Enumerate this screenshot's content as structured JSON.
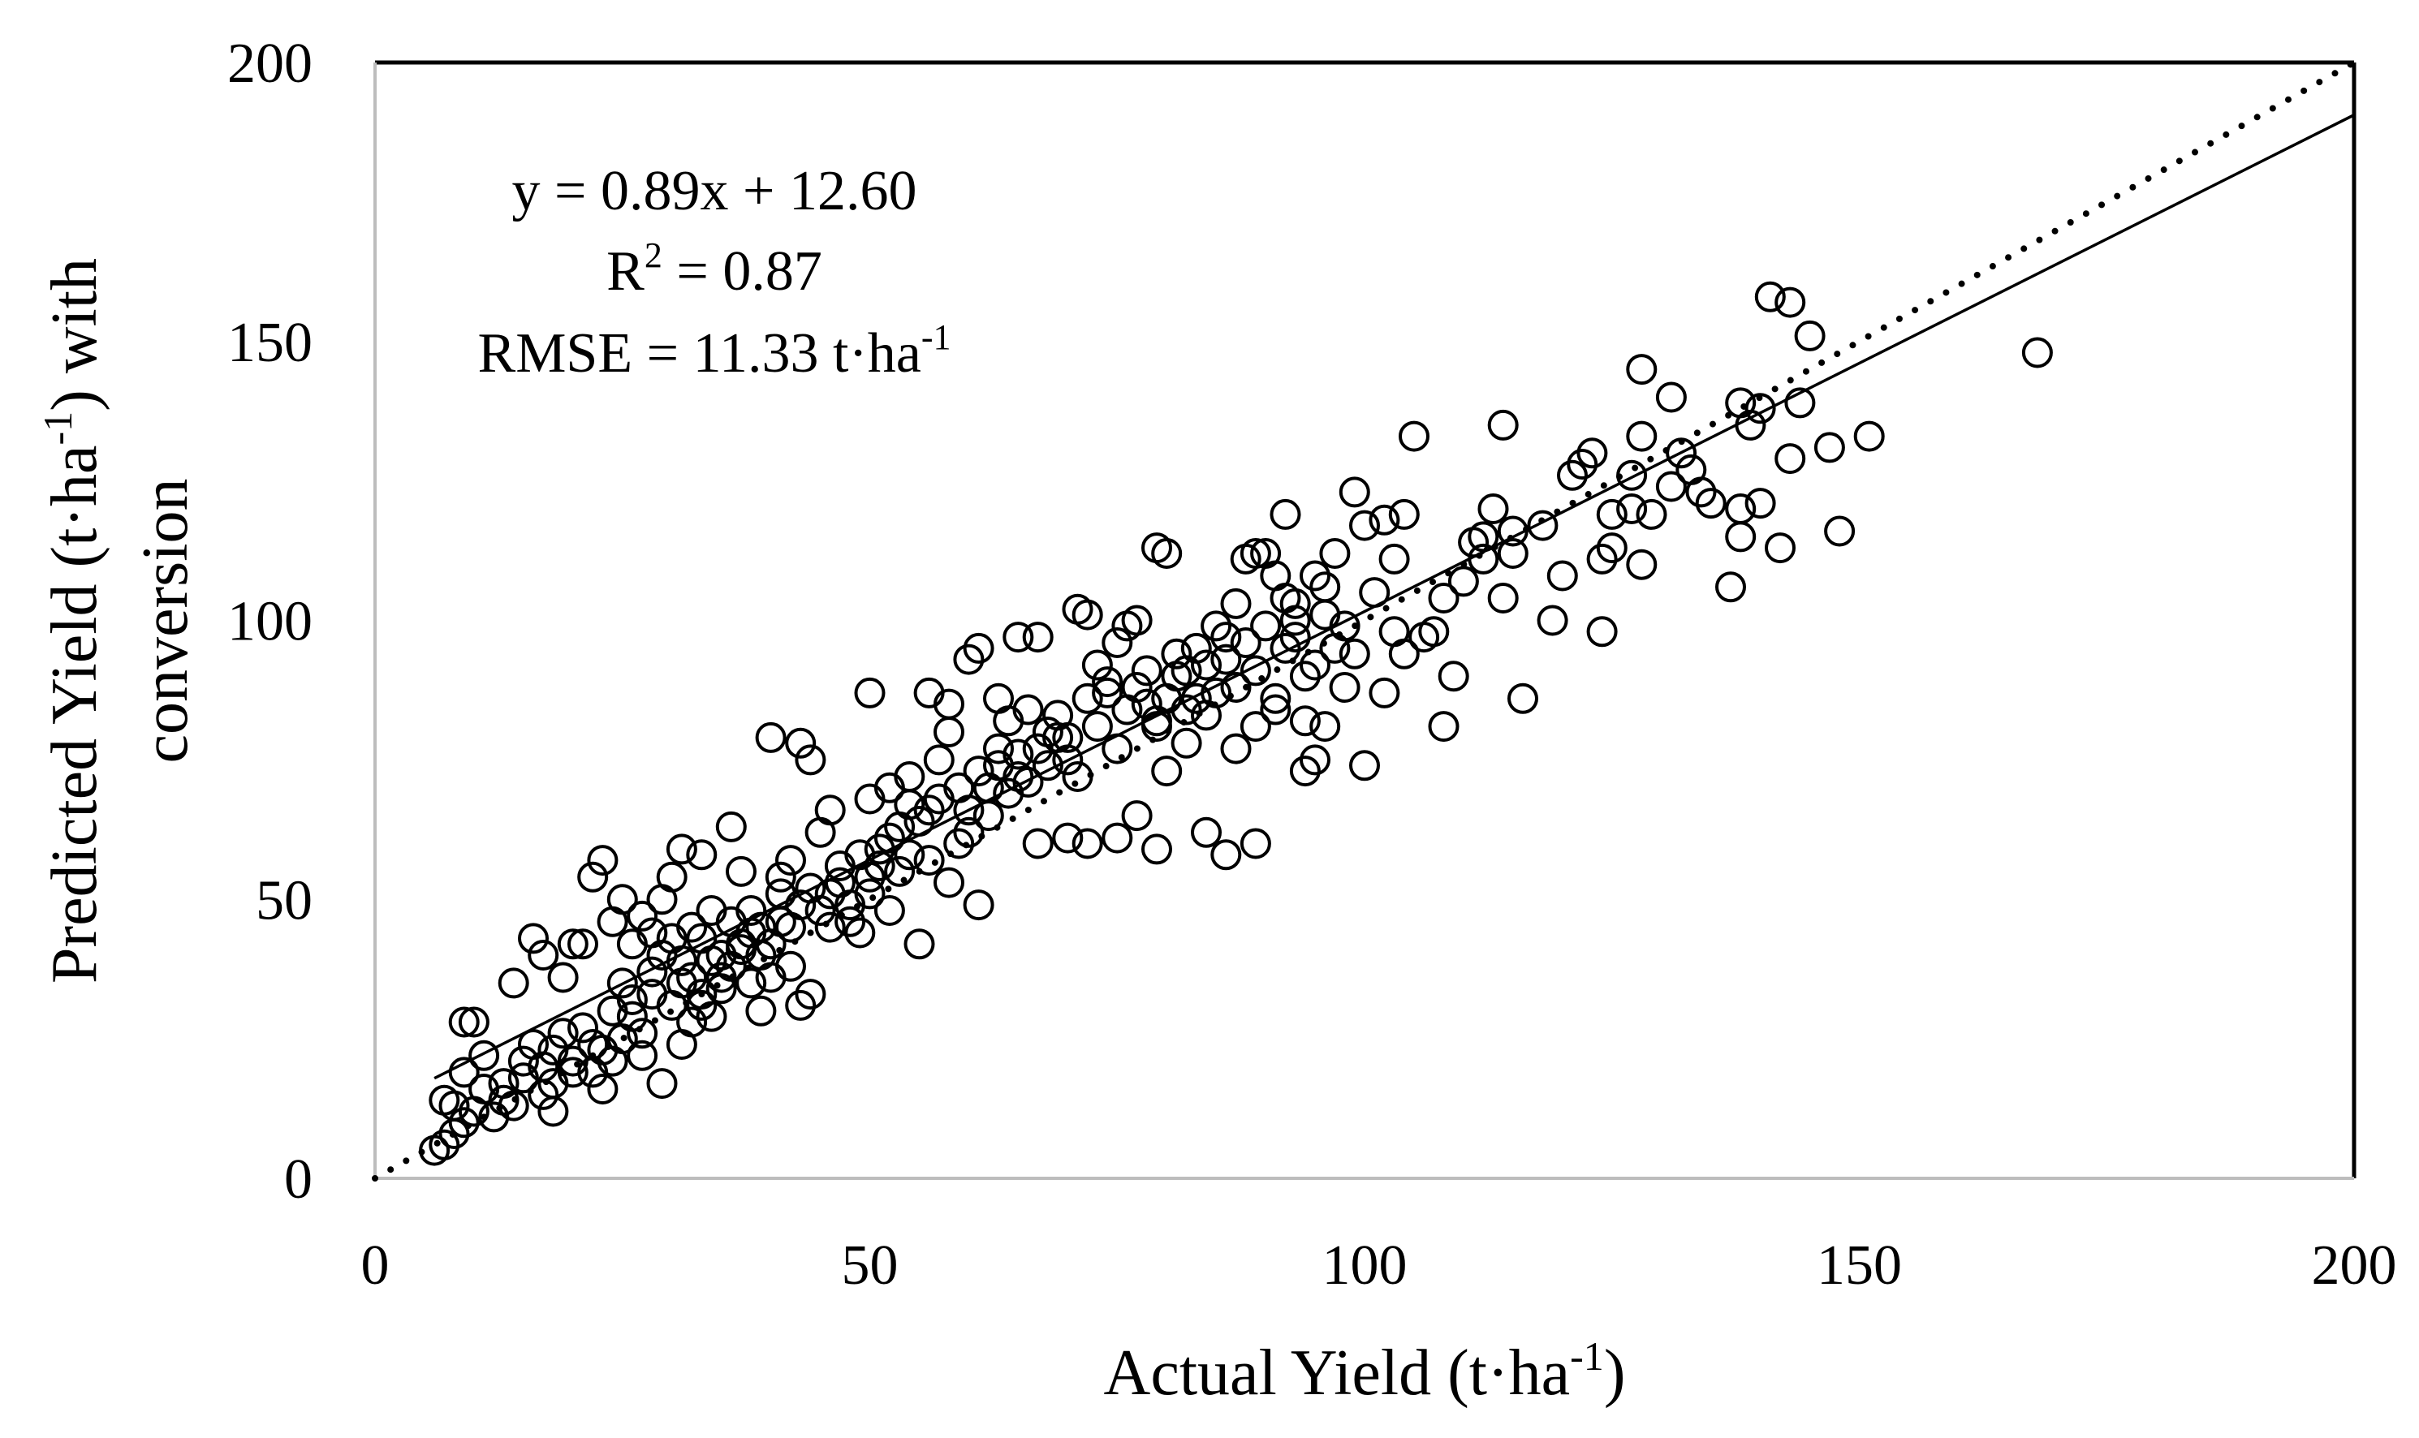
{
  "chart_data": {
    "type": "scatter",
    "title": "",
    "xlabel": "Actual Yield (t·ha",
    "xlabel_sup": "-1",
    "xlabel_close": ")",
    "ylabel_line1_pre": "Predicted Yield (t·ha",
    "ylabel_line1_sup": "-1",
    "ylabel_line1_post": ") with",
    "ylabel_line2": "conversion",
    "xlim": [
      0,
      200
    ],
    "ylim": [
      0,
      200
    ],
    "xticks": [
      "0",
      "50",
      "100",
      "150",
      "200"
    ],
    "yticks": [
      "0",
      "50",
      "100",
      "150",
      "200"
    ],
    "grid": false,
    "legend": "none",
    "annotations": {
      "equation": "y = 0.89x + 12.60",
      "r2_pre": "R",
      "r2_sup": "2",
      "r2_post": " = 0.87",
      "rmse_pre": "RMSE = 11.33 t·ha",
      "rmse_sup": "-1"
    },
    "regression_line": {
      "slope": 0.89,
      "intercept": 12.6,
      "x_range": [
        6,
        200
      ],
      "style": "solid"
    },
    "identity_line": {
      "slope": 1,
      "intercept": 0,
      "x_range": [
        0,
        200
      ],
      "style": "dotted"
    },
    "points": [
      [
        6,
        5
      ],
      [
        7,
        6
      ],
      [
        8,
        8
      ],
      [
        9,
        10
      ],
      [
        7,
        14
      ],
      [
        8,
        13
      ],
      [
        10,
        12
      ],
      [
        11,
        16
      ],
      [
        12,
        11
      ],
      [
        13,
        14
      ],
      [
        9,
        19
      ],
      [
        11,
        22
      ],
      [
        10,
        28
      ],
      [
        9,
        28
      ],
      [
        14,
        13
      ],
      [
        13,
        17
      ],
      [
        15,
        21
      ],
      [
        17,
        20
      ],
      [
        18,
        23
      ],
      [
        19,
        26
      ],
      [
        18,
        12
      ],
      [
        20,
        19
      ],
      [
        21,
        27
      ],
      [
        22,
        24
      ],
      [
        23,
        16
      ],
      [
        24,
        21
      ],
      [
        25,
        25
      ],
      [
        26,
        29
      ],
      [
        28,
        33
      ],
      [
        27,
        22
      ],
      [
        30,
        31
      ],
      [
        31,
        24
      ],
      [
        32,
        28
      ],
      [
        29,
        17
      ],
      [
        33,
        33
      ],
      [
        35,
        36
      ],
      [
        34,
        29
      ],
      [
        36,
        38
      ],
      [
        38,
        35
      ],
      [
        39,
        30
      ],
      [
        14,
        35
      ],
      [
        16,
        43
      ],
      [
        17,
        40
      ],
      [
        19,
        36
      ],
      [
        20,
        42
      ],
      [
        21,
        42
      ],
      [
        23,
        57
      ],
      [
        22,
        54
      ],
      [
        24,
        46
      ],
      [
        25,
        50
      ],
      [
        26,
        42
      ],
      [
        27,
        47
      ],
      [
        28,
        44
      ],
      [
        29,
        50
      ],
      [
        30,
        54
      ],
      [
        31,
        59
      ],
      [
        32,
        45
      ],
      [
        33,
        58
      ],
      [
        34,
        48
      ],
      [
        36,
        63
      ],
      [
        37,
        55
      ],
      [
        38,
        44
      ],
      [
        40,
        79
      ],
      [
        41,
        51
      ],
      [
        42,
        57
      ],
      [
        43,
        78
      ],
      [
        44,
        75
      ],
      [
        45,
        62
      ],
      [
        46,
        66
      ],
      [
        44,
        52
      ],
      [
        40,
        42
      ],
      [
        42,
        38
      ],
      [
        44,
        33
      ],
      [
        43,
        31
      ],
      [
        41,
        46
      ],
      [
        39,
        40
      ],
      [
        37,
        41
      ],
      [
        35,
        40
      ],
      [
        33,
        43
      ],
      [
        31,
        35
      ],
      [
        46,
        51
      ],
      [
        47,
        56
      ],
      [
        48,
        49
      ],
      [
        49,
        44
      ],
      [
        50,
        54
      ],
      [
        51,
        59
      ],
      [
        52,
        48
      ],
      [
        53,
        63
      ],
      [
        54,
        58
      ],
      [
        55,
        42
      ],
      [
        50,
        87
      ],
      [
        50,
        68
      ],
      [
        52,
        70
      ],
      [
        54,
        72
      ],
      [
        56,
        66
      ],
      [
        57,
        75
      ],
      [
        58,
        80
      ],
      [
        59,
        70
      ],
      [
        60,
        62
      ],
      [
        61,
        49
      ],
      [
        56,
        87
      ],
      [
        58,
        85
      ],
      [
        60,
        93
      ],
      [
        61,
        95
      ],
      [
        63,
        77
      ],
      [
        64,
        82
      ],
      [
        65,
        76
      ],
      [
        66,
        71
      ],
      [
        67,
        60
      ],
      [
        68,
        80
      ],
      [
        62,
        65
      ],
      [
        63,
        86
      ],
      [
        65,
        97
      ],
      [
        67,
        97
      ],
      [
        69,
        79
      ],
      [
        70,
        75
      ],
      [
        71,
        102
      ],
      [
        72,
        101
      ],
      [
        73,
        92
      ],
      [
        74,
        87
      ],
      [
        75,
        96
      ],
      [
        76,
        99
      ],
      [
        77,
        100
      ],
      [
        78,
        85
      ],
      [
        79,
        81
      ],
      [
        79,
        113
      ],
      [
        80,
        112
      ],
      [
        81,
        94
      ],
      [
        82,
        91
      ],
      [
        83,
        86
      ],
      [
        70,
        61
      ],
      [
        72,
        60
      ],
      [
        75,
        61
      ],
      [
        77,
        65
      ],
      [
        79,
        59
      ],
      [
        84,
        62
      ],
      [
        86,
        58
      ],
      [
        89,
        60
      ],
      [
        80,
        73
      ],
      [
        82,
        78
      ],
      [
        84,
        83
      ],
      [
        85,
        87
      ],
      [
        86,
        97
      ],
      [
        87,
        103
      ],
      [
        88,
        111
      ],
      [
        89,
        112
      ],
      [
        90,
        112
      ],
      [
        91,
        108
      ],
      [
        92,
        119
      ],
      [
        93,
        100
      ],
      [
        87,
        77
      ],
      [
        89,
        81
      ],
      [
        91,
        84
      ],
      [
        92,
        95
      ],
      [
        93,
        103
      ],
      [
        94,
        82
      ],
      [
        95,
        92
      ],
      [
        96,
        106
      ],
      [
        97,
        112
      ],
      [
        98,
        99
      ],
      [
        94,
        73
      ],
      [
        95,
        75
      ],
      [
        96,
        81
      ],
      [
        98,
        88
      ],
      [
        99,
        94
      ],
      [
        100,
        74
      ],
      [
        101,
        105
      ],
      [
        102,
        118
      ],
      [
        103,
        111
      ],
      [
        104,
        119
      ],
      [
        99,
        123
      ],
      [
        100,
        117
      ],
      [
        102,
        87
      ],
      [
        103,
        98
      ],
      [
        104,
        94
      ],
      [
        105,
        133
      ],
      [
        106,
        97
      ],
      [
        107,
        98
      ],
      [
        108,
        104
      ],
      [
        109,
        90
      ],
      [
        108,
        81
      ],
      [
        110,
        107
      ],
      [
        111,
        114
      ],
      [
        112,
        111
      ],
      [
        113,
        120
      ],
      [
        114,
        104
      ],
      [
        114,
        135
      ],
      [
        115,
        116
      ],
      [
        116,
        86
      ],
      [
        115,
        112
      ],
      [
        118,
        117
      ],
      [
        119,
        100
      ],
      [
        120,
        108
      ],
      [
        121,
        126
      ],
      [
        122,
        128
      ],
      [
        123,
        130
      ],
      [
        124,
        98
      ],
      [
        125,
        119
      ],
      [
        125,
        113
      ],
      [
        127,
        120
      ],
      [
        128,
        110
      ],
      [
        128,
        133
      ],
      [
        128,
        145
      ],
      [
        129,
        119
      ],
      [
        131,
        140
      ],
      [
        131,
        124
      ],
      [
        132,
        130
      ],
      [
        133,
        127
      ],
      [
        134,
        123
      ],
      [
        135,
        121
      ],
      [
        137,
        106
      ],
      [
        138,
        115
      ],
      [
        138,
        120
      ],
      [
        138,
        139
      ],
      [
        139,
        135
      ],
      [
        140,
        138
      ],
      [
        141,
        158
      ],
      [
        142,
        113
      ],
      [
        143,
        129
      ],
      [
        143,
        157
      ],
      [
        144,
        139
      ],
      [
        145,
        151
      ],
      [
        147,
        131
      ],
      [
        148,
        116
      ],
      [
        151,
        133
      ],
      [
        168,
        148
      ],
      [
        140,
        121
      ],
      [
        127,
        126
      ],
      [
        124,
        111
      ],
      [
        112,
        115
      ],
      [
        15,
        18
      ],
      [
        16,
        24
      ],
      [
        17,
        15
      ],
      [
        18,
        17
      ],
      [
        20,
        21
      ],
      [
        22,
        19
      ],
      [
        23,
        23
      ],
      [
        24,
        30
      ],
      [
        25,
        35
      ],
      [
        26,
        32
      ],
      [
        27,
        26
      ],
      [
        28,
        37
      ],
      [
        29,
        40
      ],
      [
        30,
        43
      ],
      [
        31,
        39
      ],
      [
        32,
        36
      ],
      [
        33,
        31
      ],
      [
        34,
        39
      ],
      [
        35,
        34
      ],
      [
        36,
        46
      ],
      [
        37,
        42
      ],
      [
        38,
        48
      ],
      [
        39,
        45
      ],
      [
        40,
        36
      ],
      [
        41,
        54
      ],
      [
        42,
        45
      ],
      [
        43,
        49
      ],
      [
        45,
        48
      ],
      [
        46,
        45
      ],
      [
        47,
        53
      ],
      [
        48,
        46
      ],
      [
        49,
        58
      ],
      [
        50,
        51
      ],
      [
        51,
        56
      ],
      [
        52,
        61
      ],
      [
        53,
        55
      ],
      [
        54,
        67
      ],
      [
        55,
        64
      ],
      [
        56,
        57
      ],
      [
        57,
        68
      ],
      [
        58,
        53
      ],
      [
        59,
        60
      ],
      [
        60,
        66
      ],
      [
        61,
        73
      ],
      [
        62,
        70
      ],
      [
        63,
        74
      ],
      [
        64,
        69
      ],
      [
        65,
        72
      ],
      [
        66,
        84
      ],
      [
        67,
        77
      ],
      [
        68,
        74
      ],
      [
        69,
        83
      ],
      [
        70,
        79
      ],
      [
        71,
        72
      ],
      [
        72,
        86
      ],
      [
        73,
        81
      ],
      [
        74,
        89
      ],
      [
        75,
        77
      ],
      [
        76,
        84
      ],
      [
        77,
        88
      ],
      [
        78,
        91
      ],
      [
        79,
        82
      ],
      [
        80,
        86
      ],
      [
        81,
        90
      ],
      [
        82,
        84
      ],
      [
        83,
        95
      ],
      [
        84,
        92
      ],
      [
        85,
        99
      ],
      [
        86,
        93
      ],
      [
        87,
        88
      ],
      [
        88,
        96
      ],
      [
        89,
        91
      ],
      [
        90,
        99
      ],
      [
        91,
        86
      ],
      [
        92,
        104
      ],
      [
        93,
        97
      ],
      [
        94,
        90
      ],
      [
        95,
        108
      ],
      [
        96,
        101
      ],
      [
        97,
        95
      ]
    ]
  }
}
